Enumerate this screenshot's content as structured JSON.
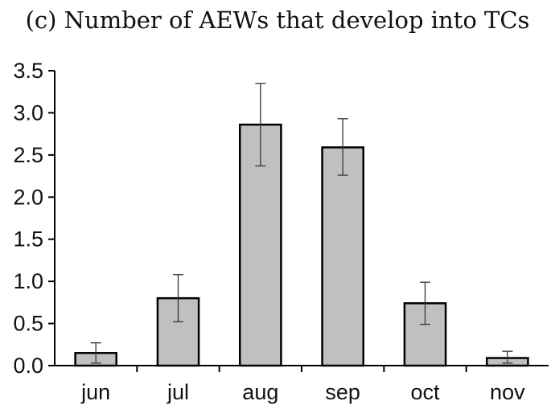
{
  "chart_data": {
    "type": "bar",
    "title": "(c) Number of AEWs that develop into TCs",
    "xlabel": "",
    "ylabel": "",
    "categories": [
      "jun",
      "jul",
      "aug",
      "sep",
      "oct",
      "nov"
    ],
    "values": [
      0.15,
      0.8,
      2.86,
      2.59,
      0.74,
      0.09
    ],
    "error_low": [
      0.03,
      0.52,
      2.37,
      2.26,
      0.49,
      0.03
    ],
    "error_high": [
      0.27,
      1.08,
      3.35,
      2.93,
      0.99,
      0.17
    ],
    "ylim": [
      0,
      3.5
    ],
    "yticks": [
      "0.0",
      "0.5",
      "1.0",
      "1.5",
      "2.0",
      "2.5",
      "3.0",
      "3.5"
    ],
    "grid": false,
    "bar_color": "#c0c0c0",
    "edge_color": "#000000"
  }
}
